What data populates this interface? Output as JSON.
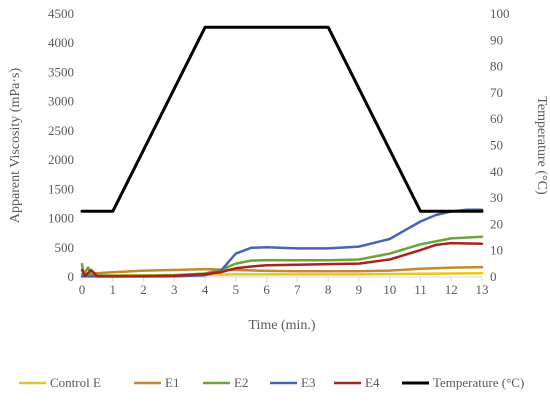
{
  "chart_data": {
    "type": "line",
    "title": "",
    "xlabel": "Time (min.)",
    "ylabel": "Apparent Viscosity (mPa·s)",
    "y2label": "Temperature (°C)",
    "xlim": [
      0,
      13
    ],
    "ylim": [
      0,
      4500
    ],
    "y2lim": [
      0,
      100
    ],
    "x_ticks": [
      "0",
      "1",
      "2",
      "3",
      "4",
      "5",
      "6",
      "7",
      "8",
      "9",
      "10",
      "11",
      "12",
      "13"
    ],
    "y_ticks": [
      "0",
      "500",
      "1000",
      "1500",
      "2000",
      "2500",
      "3000",
      "3500",
      "4000",
      "4500"
    ],
    "y2_ticks": [
      "0",
      "10",
      "20",
      "30",
      "40",
      "50",
      "60",
      "70",
      "80",
      "90",
      "100"
    ],
    "grid": false,
    "legend_position": "bottom",
    "series": [
      {
        "name": "Control E",
        "color": "#E6C619",
        "axis": "left",
        "points": [
          [
            0,
            20
          ],
          [
            1,
            25
          ],
          [
            2,
            30
          ],
          [
            3,
            35
          ],
          [
            4,
            40
          ],
          [
            5,
            45
          ],
          [
            6,
            45
          ],
          [
            7,
            45
          ],
          [
            8,
            45
          ],
          [
            9,
            45
          ],
          [
            10,
            50
          ],
          [
            11,
            55
          ],
          [
            12,
            60
          ],
          [
            13,
            65
          ]
        ]
      },
      {
        "name": "E1",
        "color": "#C8872A",
        "axis": "left",
        "points": [
          [
            0,
            50
          ],
          [
            1,
            80
          ],
          [
            2,
            110
          ],
          [
            3,
            120
          ],
          [
            4,
            135
          ],
          [
            5,
            120
          ],
          [
            6,
            105
          ],
          [
            7,
            100
          ],
          [
            8,
            100
          ],
          [
            9,
            100
          ],
          [
            10,
            110
          ],
          [
            11,
            140
          ],
          [
            12,
            160
          ],
          [
            13,
            170
          ]
        ]
      },
      {
        "name": "E2",
        "color": "#6BA33A",
        "axis": "left",
        "points": [
          [
            0,
            220
          ],
          [
            0.05,
            50
          ],
          [
            0.2,
            160
          ],
          [
            0.3,
            30
          ],
          [
            1,
            20
          ],
          [
            2,
            20
          ],
          [
            3,
            30
          ],
          [
            4,
            60
          ],
          [
            4.5,
            120
          ],
          [
            5,
            230
          ],
          [
            5.5,
            280
          ],
          [
            6,
            290
          ],
          [
            7,
            285
          ],
          [
            8,
            285
          ],
          [
            9,
            300
          ],
          [
            10,
            400
          ],
          [
            11,
            560
          ],
          [
            12,
            660
          ],
          [
            13,
            690
          ]
        ]
      },
      {
        "name": "E3",
        "color": "#4666B5",
        "axis": "left",
        "points": [
          [
            0,
            10
          ],
          [
            1,
            10
          ],
          [
            2,
            10
          ],
          [
            3,
            10
          ],
          [
            4,
            30
          ],
          [
            4.5,
            100
          ],
          [
            5,
            400
          ],
          [
            5.5,
            500
          ],
          [
            6,
            510
          ],
          [
            7,
            490
          ],
          [
            8,
            490
          ],
          [
            9,
            520
          ],
          [
            10,
            650
          ],
          [
            10.5,
            800
          ],
          [
            11,
            950
          ],
          [
            11.5,
            1060
          ],
          [
            12,
            1120
          ],
          [
            12.5,
            1150
          ],
          [
            13,
            1150
          ]
        ]
      },
      {
        "name": "E4",
        "color": "#A8241A",
        "axis": "left",
        "points": [
          [
            0,
            120
          ],
          [
            0.1,
            20
          ],
          [
            0.3,
            120
          ],
          [
            0.5,
            10
          ],
          [
            1,
            10
          ],
          [
            2,
            10
          ],
          [
            3,
            20
          ],
          [
            4,
            50
          ],
          [
            4.5,
            80
          ],
          [
            5,
            150
          ],
          [
            5.5,
            180
          ],
          [
            6,
            200
          ],
          [
            7,
            210
          ],
          [
            8,
            220
          ],
          [
            9,
            230
          ],
          [
            10,
            300
          ],
          [
            11,
            460
          ],
          [
            11.5,
            550
          ],
          [
            12,
            580
          ],
          [
            13,
            570
          ]
        ]
      },
      {
        "name": "Temperature (°C)",
        "color": "#000000",
        "axis": "right",
        "points": [
          [
            0,
            25
          ],
          [
            1,
            25
          ],
          [
            4,
            95
          ],
          [
            8,
            95
          ],
          [
            11,
            25
          ],
          [
            13,
            25
          ]
        ]
      }
    ]
  }
}
